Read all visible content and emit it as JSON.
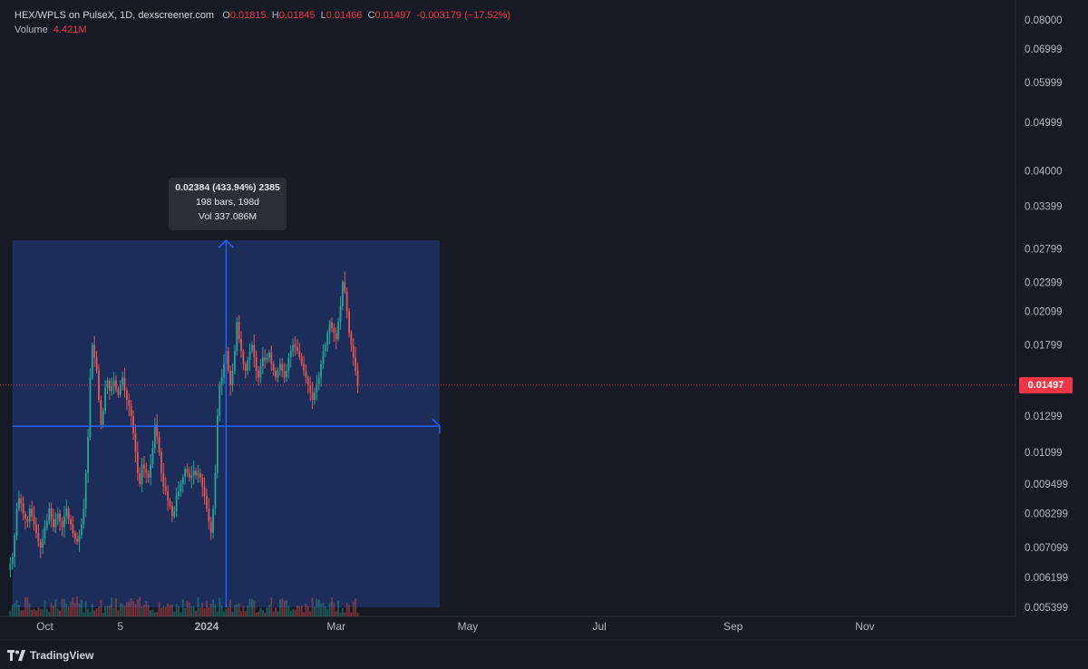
{
  "legend": {
    "symbol": "HEX/WPLS on PulseX, 1D, dexscreener.com",
    "o_label": "O",
    "o_value": "0.01815",
    "h_label": "H",
    "h_value": "0.01845",
    "l_label": "L",
    "l_value": "0.01466",
    "c_label": "C",
    "c_value": "0.01497",
    "change": "-0.003179 (−17.52%)",
    "volume_label": "Volume",
    "volume_value": "4.421M"
  },
  "measure_tooltip": {
    "line1": "0.02384 (433.94%) 2385",
    "line2": "198 bars, 198d",
    "line3": "Vol 337.086M"
  },
  "last_price_label": "0.01497",
  "footer": {
    "brand": "TradingView",
    "icon": "tradingview-logo-icon"
  },
  "colors": {
    "background": "#161a25",
    "up": "#26a69a",
    "down": "#ef5350",
    "measure_fill": "#1e3a78",
    "measure_line": "#2962ff",
    "price_tag": "#f23645"
  },
  "chart_data": {
    "type": "candlestick",
    "title": "HEX/WPLS on PulseX, 1D, dexscreener.com",
    "y_axis": {
      "scale": "log",
      "position": "right",
      "ticks": [
        "0.08000",
        "0.06999",
        "0.05999",
        "0.04999",
        "0.04000",
        "0.03399",
        "0.02799",
        "0.02399",
        "0.02099",
        "0.01799",
        "0.01299",
        "0.01099",
        "0.009499",
        "0.008299",
        "0.007099",
        "0.006199",
        "0.005399"
      ]
    },
    "x_axis": {
      "ticks": [
        {
          "label": "Oct",
          "bold": false,
          "day": 17
        },
        {
          "label": "5",
          "bold": false,
          "day": 52
        },
        {
          "label": "2024",
          "bold": true,
          "day": 92
        },
        {
          "label": "Mar",
          "bold": false,
          "day": 152
        },
        {
          "label": "May",
          "bold": false,
          "day": 213
        },
        {
          "label": "Jul",
          "bold": false,
          "day": 274
        },
        {
          "label": "Sep",
          "bold": false,
          "day": 336
        },
        {
          "label": "Nov",
          "bold": false,
          "day": 397
        }
      ]
    },
    "last_price": 0.01497,
    "measure": {
      "start_day": 2,
      "end_day": 200,
      "low": 0.0054,
      "high": 0.0291,
      "mid_price": 0.0124,
      "mid_day": 101
    },
    "closes": [
      0.0066,
      0.0068,
      0.0075,
      0.0085,
      0.0089,
      0.0087,
      0.0083,
      0.0081,
      0.008,
      0.0085,
      0.0082,
      0.0079,
      0.0076,
      0.0073,
      0.0071,
      0.0074,
      0.0078,
      0.008,
      0.0085,
      0.0081,
      0.0078,
      0.0081,
      0.0083,
      0.008,
      0.0078,
      0.0082,
      0.0085,
      0.0081,
      0.0079,
      0.0076,
      0.0074,
      0.0073,
      0.0075,
      0.0079,
      0.0085,
      0.01,
      0.0118,
      0.0155,
      0.018,
      0.017,
      0.016,
      0.014,
      0.0125,
      0.0133,
      0.0148,
      0.0153,
      0.0146,
      0.0149,
      0.0153,
      0.0147,
      0.0143,
      0.015,
      0.0155,
      0.0146,
      0.014,
      0.0136,
      0.013,
      0.012,
      0.011,
      0.01,
      0.0095,
      0.0104,
      0.0102,
      0.01,
      0.0098,
      0.0104,
      0.0112,
      0.0125,
      0.0118,
      0.011,
      0.01,
      0.0094,
      0.0092,
      0.0088,
      0.0086,
      0.0082,
      0.0084,
      0.009,
      0.0092,
      0.0095,
      0.0098,
      0.0102,
      0.01,
      0.0098,
      0.0099,
      0.0101,
      0.0099,
      0.01,
      0.0098,
      0.0094,
      0.009,
      0.0085,
      0.008,
      0.0076,
      0.0085,
      0.01,
      0.013,
      0.015,
      0.0155,
      0.0165,
      0.0175,
      0.016,
      0.015,
      0.016,
      0.0175,
      0.02,
      0.0185,
      0.0175,
      0.0165,
      0.016,
      0.0168,
      0.0175,
      0.018,
      0.017,
      0.016,
      0.0155,
      0.0163,
      0.017,
      0.0168,
      0.017,
      0.0174,
      0.0165,
      0.016,
      0.0155,
      0.016,
      0.0165,
      0.016,
      0.0155,
      0.016,
      0.017,
      0.0175,
      0.018,
      0.0178,
      0.0175,
      0.017,
      0.0165,
      0.016,
      0.0155,
      0.015,
      0.0145,
      0.014,
      0.0145,
      0.015,
      0.0155,
      0.0165,
      0.0175,
      0.018,
      0.019,
      0.02,
      0.0195,
      0.019,
      0.0185,
      0.02,
      0.0215,
      0.024,
      0.023,
      0.021,
      0.019,
      0.018,
      0.017,
      0.016,
      0.015
    ]
  }
}
